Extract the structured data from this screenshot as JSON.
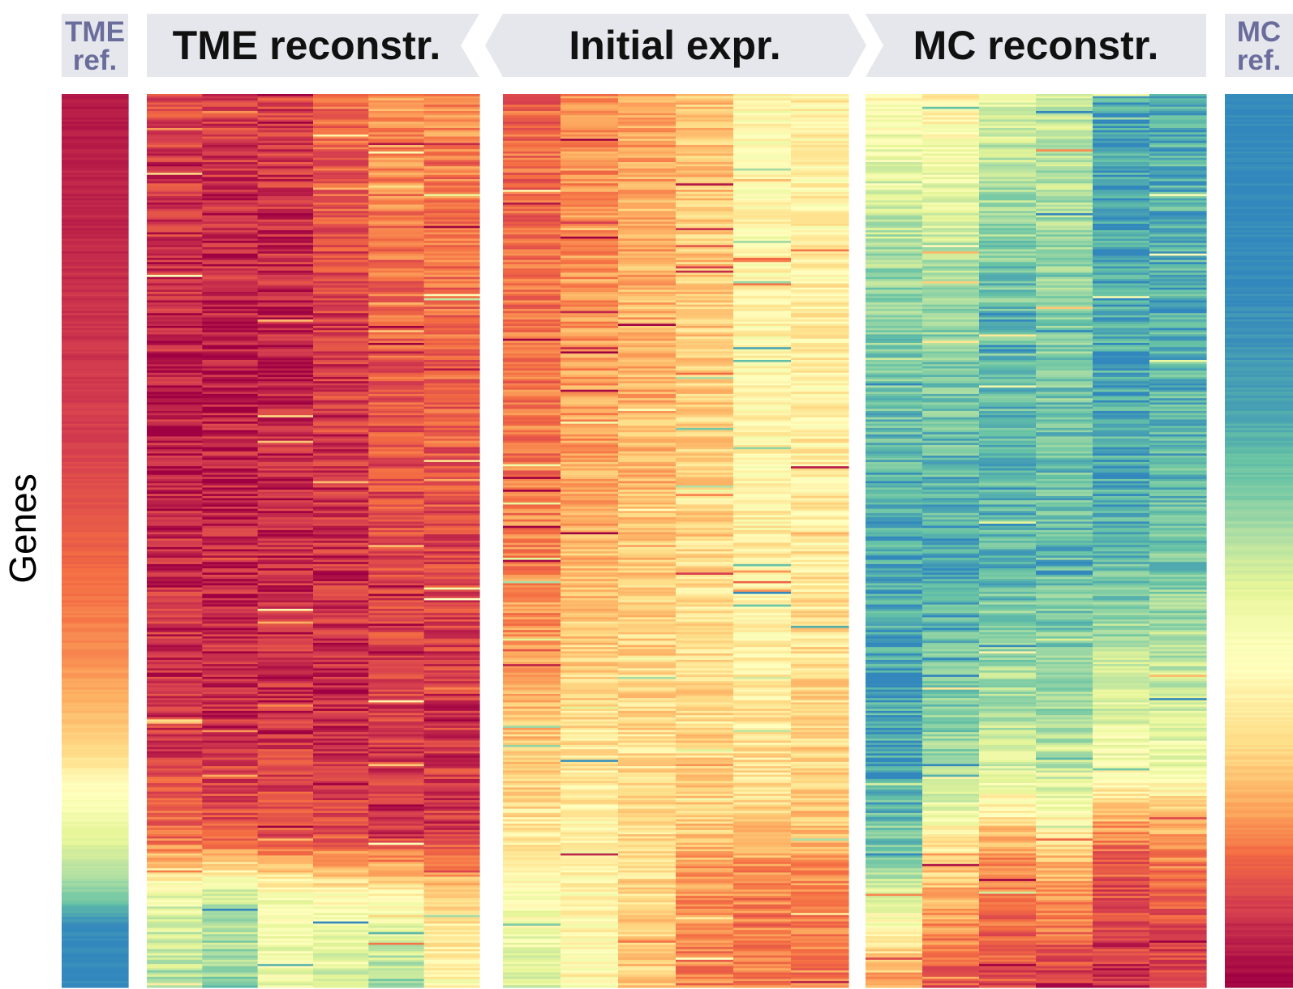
{
  "figure": {
    "ylabel": "Genes"
  },
  "headers": {
    "tme_ref": [
      "TME",
      "ref."
    ],
    "tme_reconstr": "TME reconstr.",
    "initial_expr": "Initial expr.",
    "mc_reconstr": "MC reconstr.",
    "mc_ref": [
      "MC",
      "ref."
    ]
  },
  "colors": {
    "header_bg": "#e6e7ec",
    "ref_text": "#6a6d9c",
    "colormap": [
      "#9e0142",
      "#d53e4f",
      "#f46d43",
      "#fdae61",
      "#fee08b",
      "#ffffbf",
      "#e6f598",
      "#abdda4",
      "#66c2a5",
      "#3288bd"
    ]
  },
  "chart_data": {
    "type": "heatmap",
    "title": "",
    "ylabel": "Genes",
    "colormap": "Spectral",
    "value_range": [
      0,
      1
    ],
    "note_rows": "genes sorted along vertical axis; each panel column shows value profile from top to bottom",
    "panels": [
      {
        "name": "TME ref.",
        "columns": [
          {
            "profile": [
              [
                0.0,
                0.04
              ],
              [
                0.4,
                0.12
              ],
              [
                0.63,
                0.28
              ],
              [
                0.72,
                0.4
              ],
              [
                0.78,
                0.55
              ],
              [
                0.84,
                0.68
              ],
              [
                0.89,
                0.82
              ],
              [
                0.93,
                1.0
              ],
              [
                1.0,
                1.0
              ]
            ]
          }
        ]
      },
      {
        "name": "TME reconstr.",
        "columns": [
          {
            "profile": [
              [
                0.0,
                0.14
              ],
              [
                0.3,
                0.06
              ],
              [
                0.7,
                0.1
              ],
              [
                0.83,
                0.2
              ],
              [
                0.9,
                0.65
              ],
              [
                1.0,
                0.78
              ]
            ]
          },
          {
            "profile": [
              [
                0.0,
                0.12
              ],
              [
                0.3,
                0.05
              ],
              [
                0.7,
                0.08
              ],
              [
                0.83,
                0.18
              ],
              [
                0.9,
                0.72
              ],
              [
                1.0,
                0.82
              ]
            ]
          },
          {
            "profile": [
              [
                0.0,
                0.13
              ],
              [
                0.3,
                0.06
              ],
              [
                0.7,
                0.09
              ],
              [
                0.83,
                0.17
              ],
              [
                0.9,
                0.6
              ],
              [
                1.0,
                0.62
              ]
            ]
          },
          {
            "profile": [
              [
                0.0,
                0.22
              ],
              [
                0.3,
                0.1
              ],
              [
                0.7,
                0.08
              ],
              [
                0.83,
                0.16
              ],
              [
                0.9,
                0.55
              ],
              [
                1.0,
                0.75
              ]
            ]
          },
          {
            "profile": [
              [
                0.0,
                0.3
              ],
              [
                0.3,
                0.18
              ],
              [
                0.7,
                0.12
              ],
              [
                0.83,
                0.1
              ],
              [
                0.9,
                0.55
              ],
              [
                1.0,
                0.82
              ]
            ]
          },
          {
            "profile": [
              [
                0.0,
                0.28
              ],
              [
                0.3,
                0.2
              ],
              [
                0.7,
                0.1
              ],
              [
                0.83,
                0.12
              ],
              [
                0.9,
                0.45
              ],
              [
                1.0,
                0.55
              ]
            ]
          }
        ]
      },
      {
        "name": "Initial expr.",
        "columns": [
          {
            "profile": [
              [
                0.0,
                0.2
              ],
              [
                0.4,
                0.24
              ],
              [
                0.6,
                0.3
              ],
              [
                0.8,
                0.45
              ],
              [
                1.0,
                0.68
              ]
            ]
          },
          {
            "profile": [
              [
                0.0,
                0.28
              ],
              [
                0.4,
                0.32
              ],
              [
                0.6,
                0.4
              ],
              [
                0.8,
                0.5
              ],
              [
                1.0,
                0.56
              ]
            ]
          },
          {
            "profile": [
              [
                0.0,
                0.32
              ],
              [
                0.4,
                0.36
              ],
              [
                0.6,
                0.42
              ],
              [
                0.8,
                0.46
              ],
              [
                1.0,
                0.4
              ]
            ]
          },
          {
            "profile": [
              [
                0.0,
                0.38
              ],
              [
                0.4,
                0.42
              ],
              [
                0.6,
                0.45
              ],
              [
                0.8,
                0.42
              ],
              [
                0.88,
                0.3
              ],
              [
                1.0,
                0.25
              ]
            ]
          },
          {
            "profile": [
              [
                0.0,
                0.55
              ],
              [
                0.4,
                0.52
              ],
              [
                0.6,
                0.5
              ],
              [
                0.8,
                0.45
              ],
              [
                0.88,
                0.25
              ],
              [
                1.0,
                0.24
              ]
            ]
          },
          {
            "profile": [
              [
                0.0,
                0.52
              ],
              [
                0.4,
                0.5
              ],
              [
                0.6,
                0.46
              ],
              [
                0.8,
                0.4
              ],
              [
                0.88,
                0.28
              ],
              [
                1.0,
                0.25
              ]
            ]
          }
        ]
      },
      {
        "name": "MC reconstr.",
        "columns": [
          {
            "profile": [
              [
                0.0,
                0.55
              ],
              [
                0.2,
                0.8
              ],
              [
                0.5,
                0.95
              ],
              [
                0.75,
                0.95
              ],
              [
                0.85,
                0.85
              ],
              [
                1.0,
                0.3
              ]
            ]
          },
          {
            "profile": [
              [
                0.0,
                0.5
              ],
              [
                0.2,
                0.78
              ],
              [
                0.5,
                0.94
              ],
              [
                0.75,
                0.8
              ],
              [
                0.85,
                0.45
              ],
              [
                1.0,
                0.15
              ]
            ]
          },
          {
            "profile": [
              [
                0.0,
                0.66
              ],
              [
                0.2,
                0.86
              ],
              [
                0.5,
                0.92
              ],
              [
                0.75,
                0.7
              ],
              [
                0.85,
                0.3
              ],
              [
                1.0,
                0.15
              ]
            ]
          },
          {
            "profile": [
              [
                0.0,
                0.7
              ],
              [
                0.2,
                0.82
              ],
              [
                0.5,
                0.9
              ],
              [
                0.75,
                0.75
              ],
              [
                0.85,
                0.4
              ],
              [
                1.0,
                0.1
              ]
            ]
          },
          {
            "profile": [
              [
                0.0,
                0.95
              ],
              [
                0.2,
                0.95
              ],
              [
                0.5,
                0.93
              ],
              [
                0.75,
                0.6
              ],
              [
                0.85,
                0.2
              ],
              [
                1.0,
                0.07
              ]
            ]
          },
          {
            "profile": [
              [
                0.0,
                0.92
              ],
              [
                0.2,
                0.93
              ],
              [
                0.5,
                0.88
              ],
              [
                0.75,
                0.62
              ],
              [
                0.85,
                0.25
              ],
              [
                1.0,
                0.1
              ]
            ]
          }
        ]
      },
      {
        "name": "MC ref.",
        "columns": [
          {
            "profile": [
              [
                0.0,
                1.0
              ],
              [
                0.2,
                1.0
              ],
              [
                0.35,
                0.95
              ],
              [
                0.45,
                0.85
              ],
              [
                0.52,
                0.72
              ],
              [
                0.6,
                0.6
              ],
              [
                0.68,
                0.5
              ],
              [
                0.74,
                0.42
              ],
              [
                0.8,
                0.32
              ],
              [
                0.86,
                0.2
              ],
              [
                0.93,
                0.08
              ],
              [
                1.0,
                0.0
              ]
            ]
          }
        ]
      }
    ]
  }
}
